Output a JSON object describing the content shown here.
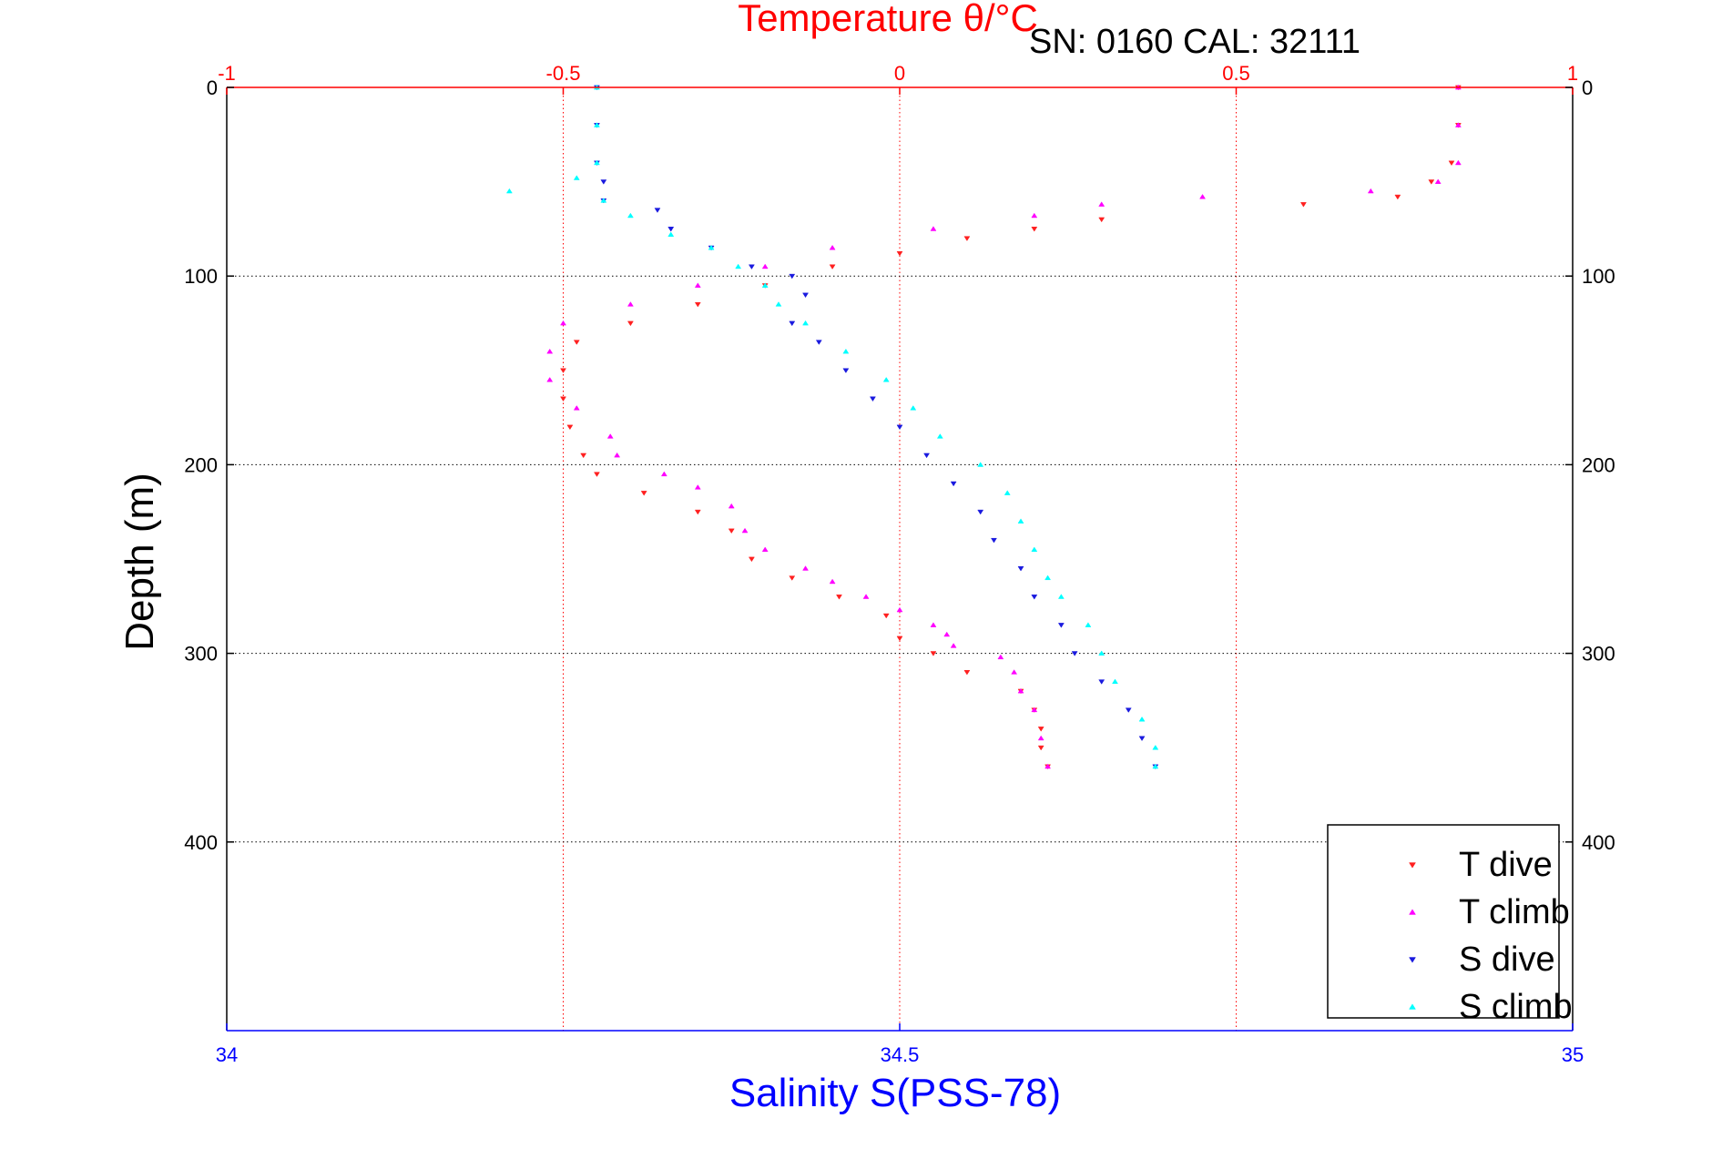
{
  "chart_data": {
    "type": "scatter",
    "title": "Temperature θ/°C",
    "annotation": "SN: 0160  CAL: 32111",
    "xlabel_bottom": "Salinity S(PSS-78)",
    "ylabel": "Depth (m)",
    "xlim_top": [
      -1,
      1
    ],
    "xlim_bottom": [
      34,
      35
    ],
    "ylim": [
      0,
      500
    ],
    "y_reversed": true,
    "grid": true,
    "top_ticks": [
      "-1",
      "-0.5",
      "0",
      "0.5",
      "1"
    ],
    "bottom_ticks": [
      "34",
      "34.5",
      "35"
    ],
    "y_ticks": [
      "0",
      "100",
      "200",
      "300",
      "400"
    ],
    "legend_position": "bottom-right",
    "colors": {
      "title": "#ff0000",
      "bottom_axis": "#0000ff",
      "t_dive": "#ff2020",
      "t_climb": "#ff00ff",
      "s_dive": "#1a1adf",
      "s_climb": "#00ffff"
    },
    "series": [
      {
        "name": "T dive",
        "axis": "top",
        "marker": "triangle-down",
        "points": [
          [
            0.83,
            0
          ],
          [
            0.83,
            20
          ],
          [
            0.82,
            40
          ],
          [
            0.79,
            50
          ],
          [
            0.74,
            58
          ],
          [
            0.6,
            62
          ],
          [
            0.3,
            70
          ],
          [
            0.2,
            75
          ],
          [
            0.1,
            80
          ],
          [
            0.0,
            88
          ],
          [
            -0.1,
            95
          ],
          [
            -0.2,
            105
          ],
          [
            -0.3,
            115
          ],
          [
            -0.4,
            125
          ],
          [
            -0.48,
            135
          ],
          [
            -0.5,
            150
          ],
          [
            -0.5,
            165
          ],
          [
            -0.49,
            180
          ],
          [
            -0.47,
            195
          ],
          [
            -0.45,
            205
          ],
          [
            -0.38,
            215
          ],
          [
            -0.3,
            225
          ],
          [
            -0.25,
            235
          ],
          [
            -0.22,
            250
          ],
          [
            -0.16,
            260
          ],
          [
            -0.09,
            270
          ],
          [
            -0.02,
            280
          ],
          [
            0.0,
            292
          ],
          [
            0.05,
            300
          ],
          [
            0.1,
            310
          ],
          [
            0.18,
            320
          ],
          [
            0.2,
            330
          ],
          [
            0.21,
            340
          ],
          [
            0.21,
            350
          ],
          [
            0.22,
            360
          ]
        ]
      },
      {
        "name": "T climb",
        "axis": "top",
        "marker": "triangle-up",
        "points": [
          [
            0.83,
            0
          ],
          [
            0.83,
            20
          ],
          [
            0.83,
            40
          ],
          [
            0.8,
            50
          ],
          [
            0.7,
            55
          ],
          [
            0.45,
            58
          ],
          [
            0.3,
            62
          ],
          [
            0.2,
            68
          ],
          [
            0.05,
            75
          ],
          [
            -0.1,
            85
          ],
          [
            -0.2,
            95
          ],
          [
            -0.3,
            105
          ],
          [
            -0.4,
            115
          ],
          [
            -0.5,
            125
          ],
          [
            -0.52,
            140
          ],
          [
            -0.52,
            155
          ],
          [
            -0.48,
            170
          ],
          [
            -0.43,
            185
          ],
          [
            -0.42,
            195
          ],
          [
            -0.35,
            205
          ],
          [
            -0.3,
            212
          ],
          [
            -0.25,
            222
          ],
          [
            -0.23,
            235
          ],
          [
            -0.2,
            245
          ],
          [
            -0.14,
            255
          ],
          [
            -0.1,
            262
          ],
          [
            -0.05,
            270
          ],
          [
            0.0,
            277
          ],
          [
            0.05,
            285
          ],
          [
            0.07,
            290
          ],
          [
            0.08,
            296
          ],
          [
            0.15,
            302
          ],
          [
            0.17,
            310
          ],
          [
            0.18,
            320
          ],
          [
            0.2,
            330
          ],
          [
            0.21,
            345
          ],
          [
            0.22,
            360
          ]
        ]
      },
      {
        "name": "S dive",
        "axis": "bottom",
        "marker": "triangle-down",
        "points": [
          [
            34.275,
            0
          ],
          [
            34.275,
            20
          ],
          [
            34.275,
            40
          ],
          [
            34.28,
            50
          ],
          [
            34.28,
            60
          ],
          [
            34.32,
            65
          ],
          [
            34.33,
            75
          ],
          [
            34.36,
            85
          ],
          [
            34.39,
            95
          ],
          [
            34.42,
            100
          ],
          [
            34.43,
            110
          ],
          [
            34.42,
            125
          ],
          [
            34.44,
            135
          ],
          [
            34.46,
            150
          ],
          [
            34.48,
            165
          ],
          [
            34.5,
            180
          ],
          [
            34.52,
            195
          ],
          [
            34.54,
            210
          ],
          [
            34.56,
            225
          ],
          [
            34.57,
            240
          ],
          [
            34.59,
            255
          ],
          [
            34.6,
            270
          ],
          [
            34.62,
            285
          ],
          [
            34.63,
            300
          ],
          [
            34.65,
            315
          ],
          [
            34.67,
            330
          ],
          [
            34.68,
            345
          ],
          [
            34.69,
            360
          ]
        ]
      },
      {
        "name": "S climb",
        "axis": "bottom",
        "marker": "triangle-up",
        "points": [
          [
            34.275,
            0
          ],
          [
            34.275,
            20
          ],
          [
            34.275,
            40
          ],
          [
            34.26,
            48
          ],
          [
            34.21,
            55
          ],
          [
            34.28,
            60
          ],
          [
            34.3,
            68
          ],
          [
            34.33,
            78
          ],
          [
            34.36,
            85
          ],
          [
            34.38,
            95
          ],
          [
            34.4,
            105
          ],
          [
            34.41,
            115
          ],
          [
            34.43,
            125
          ],
          [
            34.46,
            140
          ],
          [
            34.49,
            155
          ],
          [
            34.51,
            170
          ],
          [
            34.53,
            185
          ],
          [
            34.56,
            200
          ],
          [
            34.58,
            215
          ],
          [
            34.59,
            230
          ],
          [
            34.6,
            245
          ],
          [
            34.61,
            260
          ],
          [
            34.62,
            270
          ],
          [
            34.64,
            285
          ],
          [
            34.65,
            300
          ],
          [
            34.66,
            315
          ],
          [
            34.68,
            335
          ],
          [
            34.69,
            350
          ],
          [
            34.69,
            360
          ]
        ]
      }
    ]
  }
}
